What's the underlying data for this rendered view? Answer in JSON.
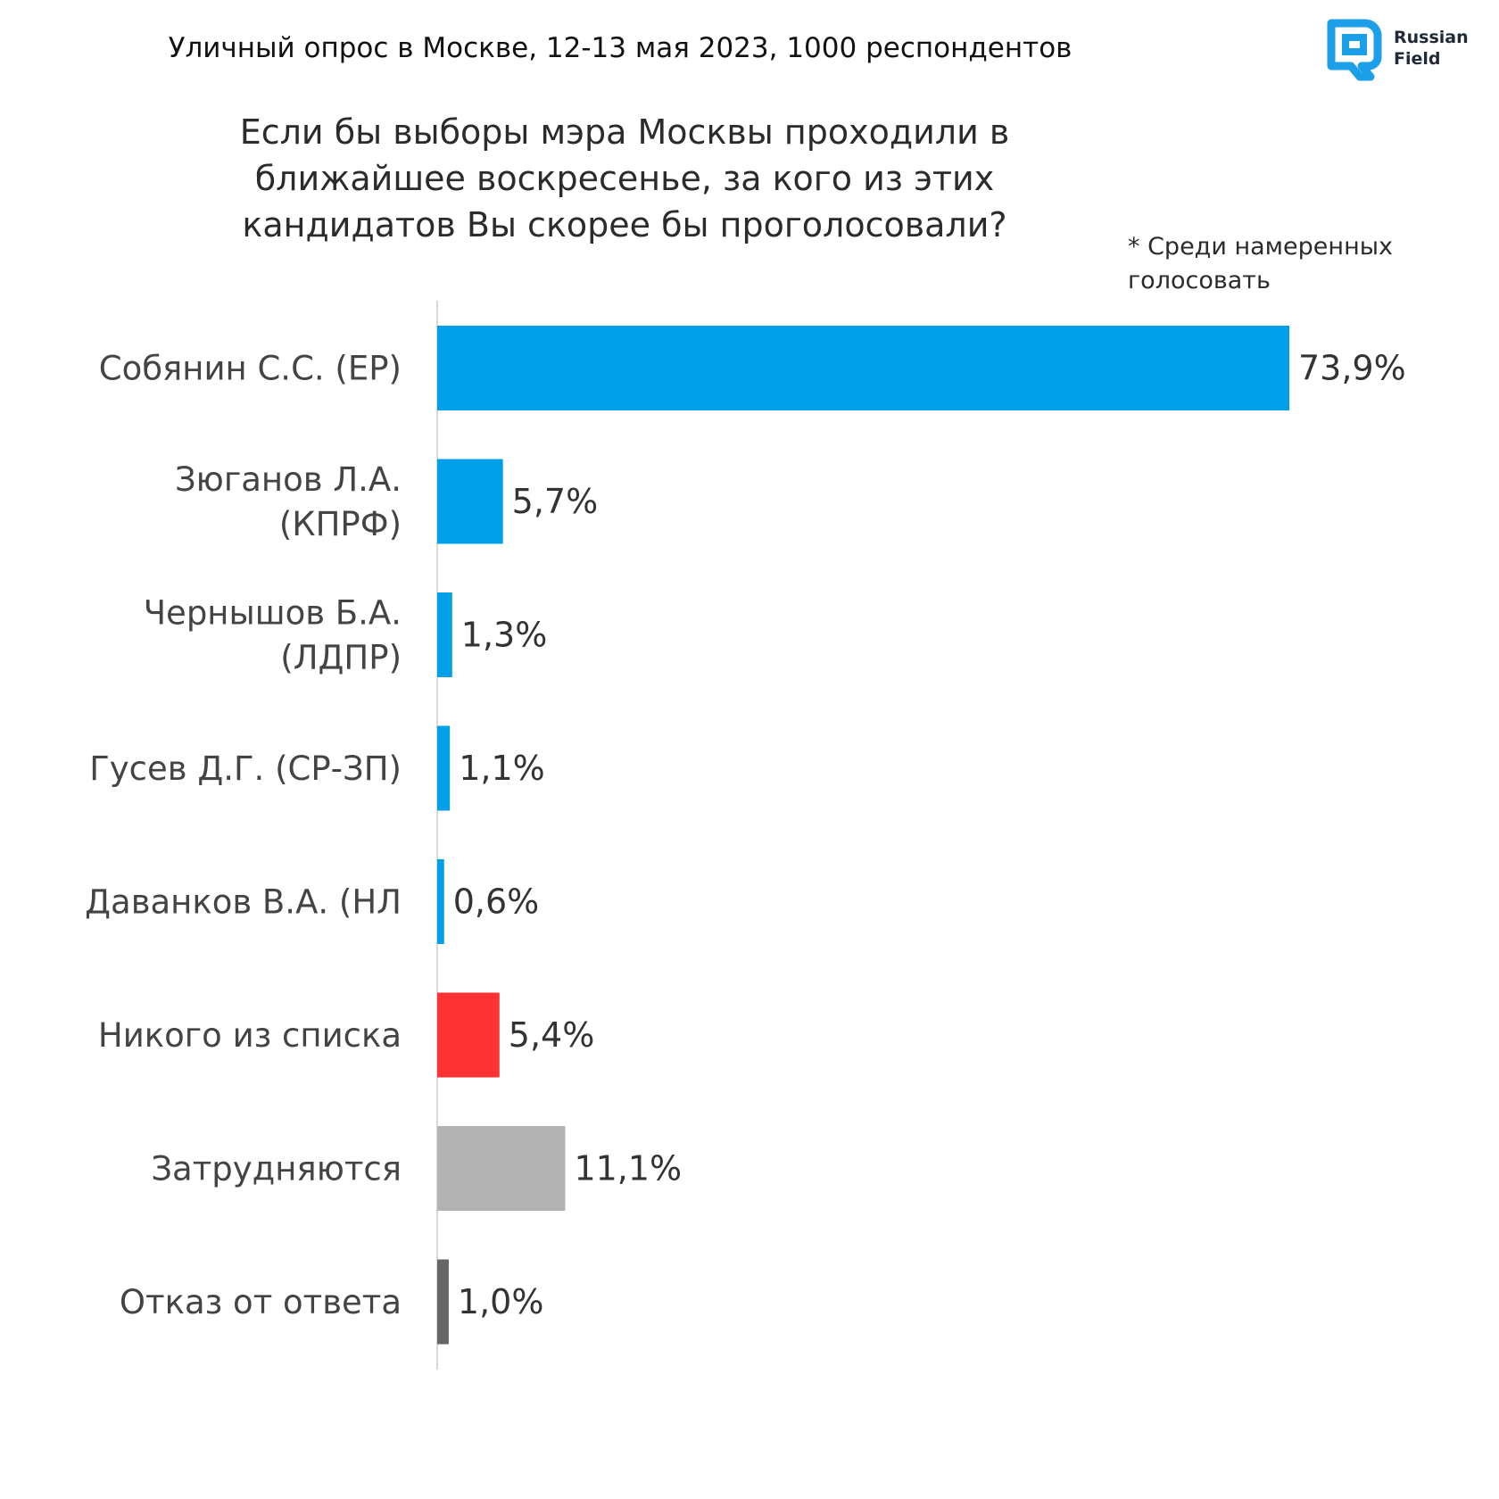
{
  "header": {
    "title": "Уличный опрос в Москве, 12-13 мая 2023, 1000 респондентов"
  },
  "logo": {
    "line1": "Russian",
    "line2": "Field",
    "accent_color": "#1a9fe8"
  },
  "chart_data": {
    "type": "bar",
    "orientation": "horizontal",
    "title": "Если бы выборы мэра Москвы проходили в ближайшее воскресенье, за кого из этих кандидатов Вы скорее бы проголосовали?",
    "note": "* Среди намеренных голосовать",
    "categories": [
      [
        "Собянин С.С. (ЕР)"
      ],
      [
        "Зюганов Л.А.",
        "(КПРФ)"
      ],
      [
        "Чернышов Б.А.",
        "(ЛДПР)"
      ],
      [
        "Гусев Д.Г. (СР-ЗП)"
      ],
      [
        "Даванков В.А. (НЛ"
      ],
      [
        "Никого из списка"
      ],
      [
        "Затрудняются"
      ],
      [
        "Отказ от ответа"
      ]
    ],
    "values": [
      73.9,
      5.7,
      1.3,
      1.1,
      0.6,
      5.4,
      11.1,
      1.0
    ],
    "value_labels": [
      "73,9%",
      "5,7%",
      "1,3%",
      "1,1%",
      "0,6%",
      "5,4%",
      "11,1%",
      "1,0%"
    ],
    "colors": [
      "#009fe8",
      "#009fe8",
      "#009fe8",
      "#009fe8",
      "#009fe8",
      "#ff3333",
      "#b3b3b3",
      "#666666"
    ],
    "xlim": [
      0,
      73.9
    ],
    "grid": false,
    "legend": "none"
  }
}
